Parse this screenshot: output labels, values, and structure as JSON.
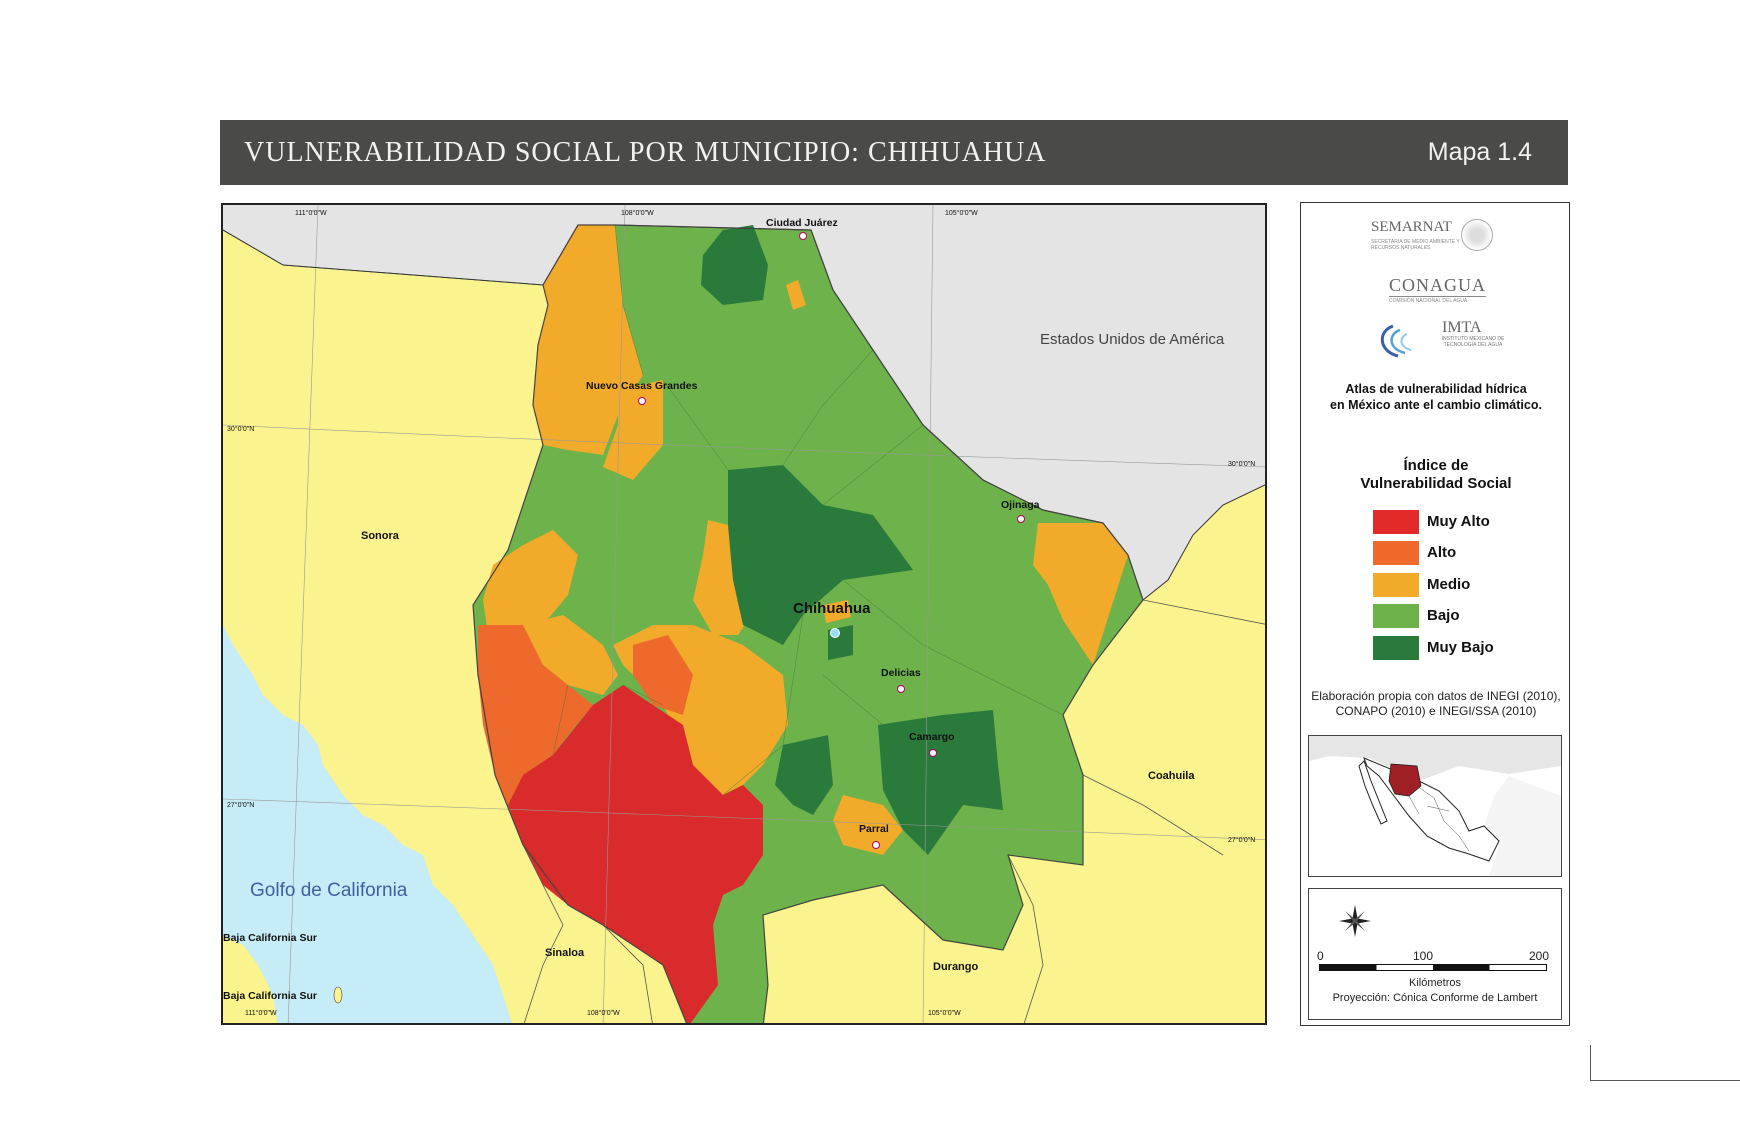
{
  "header": {
    "title": "VULNERABILIDAD SOCIAL POR MUNICIPIO: CHIHUAHUA",
    "map_number": "Mapa 1.4"
  },
  "map": {
    "labels": {
      "ciudad_juarez": "Ciudad Juárez",
      "usa": "Estados Unidos de América",
      "nuevo_casas_grandes": "Nuevo Casas Grandes",
      "sonora": "Sonora",
      "ojinaga": "Ojinaga",
      "chihuahua": "Chihuahua",
      "delicias": "Delicias",
      "camargo": "Camargo",
      "coahuila": "Coahuila",
      "parral": "Parral",
      "golfo": "Golfo de California",
      "bcs1": "Baja California Sur",
      "bcs2": "Baja California Sur",
      "sinaloa": "Sinaloa",
      "durango": "Durango"
    },
    "graticule": {
      "lon_111_top": "111°0'0\"W",
      "lon_108_top": "108°0'0\"W",
      "lon_105_top": "105°0'0\"W",
      "lon_111_bottom": "111°0'0\"W",
      "lon_108_bottom": "108°0'0\"W",
      "lon_105_bottom": "105°0'0\"W",
      "lat_30_left": "30°0'0\"N",
      "lat_30_right": "30°0'0\"N",
      "lat_27_left": "27°0'0\"N",
      "lat_27_right": "27°0'0\"N"
    }
  },
  "legend": {
    "logos": {
      "semarnat": "SEMARNAT",
      "semarnat_sub": "SECRETARÍA DE MEDIO AMBIENTE Y RECURSOS NATURALES",
      "conagua": "CONAGUA",
      "conagua_sub": "COMISIÓN NACIONAL DEL AGUA",
      "imta": "IMTA",
      "imta_sub": "INSTITUTO MEXICANO DE TECNOLOGÍA DEL AGUA"
    },
    "atlas_line1": "Atlas de vulnerabilidad  hídrica",
    "atlas_line2": "en México ante el cambio climático.",
    "title_line1": "Índice de",
    "title_line2": "Vulnerabilidad Social",
    "classes": [
      {
        "label": "Muy Alto",
        "color": "#e32a2a"
      },
      {
        "label": "Alto",
        "color": "#ee6a2c"
      },
      {
        "label": "Medio",
        "color": "#f2aa2b"
      },
      {
        "label": "Bajo",
        "color": "#6db24a"
      },
      {
        "label": "Muy Bajo",
        "color": "#2a7a3c"
      }
    ],
    "source_line1": "Elaboración propia con datos de INEGI (2010),",
    "source_line2": "CONAPO (2010) e INEGI/SSA (2010)",
    "scale": {
      "ticks": [
        "0",
        "100",
        "200"
      ],
      "unit": "Kilómetros",
      "projection": "Proyección: Cónica Conforme de Lambert"
    }
  },
  "colors": {
    "ocean": "#c6ecf7",
    "mexico_land": "#fbf38e",
    "usa_land": "#e4e4e4",
    "header_bg": "#4a4a48"
  }
}
